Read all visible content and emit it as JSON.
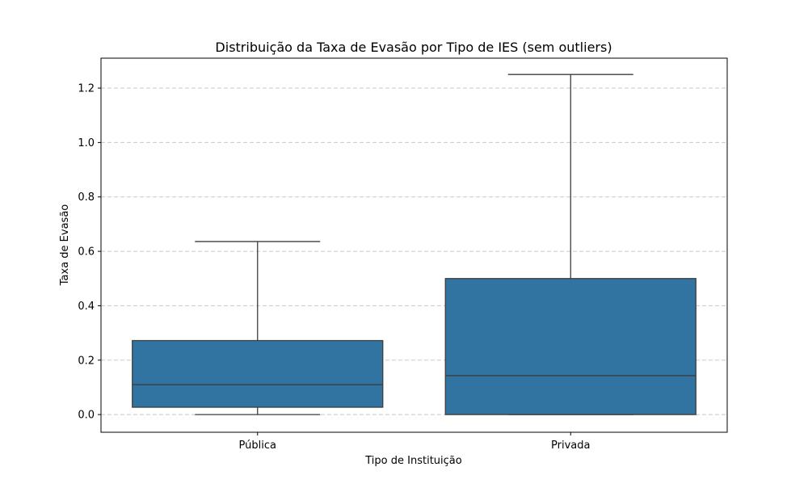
{
  "chart_data": {
    "type": "box",
    "title": "Distribuição da Taxa de Evasão por Tipo de IES (sem outliers)",
    "xlabel": "Tipo de Instituição",
    "ylabel": "Taxa de Evasão",
    "categories": [
      "Pública",
      "Privada"
    ],
    "ylim": [
      -0.065,
      1.31
    ],
    "yticks": [
      0.0,
      0.2,
      0.4,
      0.6,
      0.8,
      1.0,
      1.2
    ],
    "ytick_labels": [
      "0.0",
      "0.2",
      "0.4",
      "0.6",
      "0.8",
      "1.0",
      "1.2"
    ],
    "grid": "horizontal-dashed",
    "box_color": "#3274a1",
    "line_color": "#3d3d3d",
    "grid_color": "#c8c8c8",
    "boxes": [
      {
        "category": "Pública",
        "whisker_low": 0.0,
        "q1": 0.027,
        "median": 0.11,
        "q3": 0.272,
        "whisker_high": 0.636
      },
      {
        "category": "Privada",
        "whisker_low": 0.0,
        "q1": 0.0,
        "median": 0.143,
        "q3": 0.5,
        "whisker_high": 1.25
      }
    ]
  }
}
